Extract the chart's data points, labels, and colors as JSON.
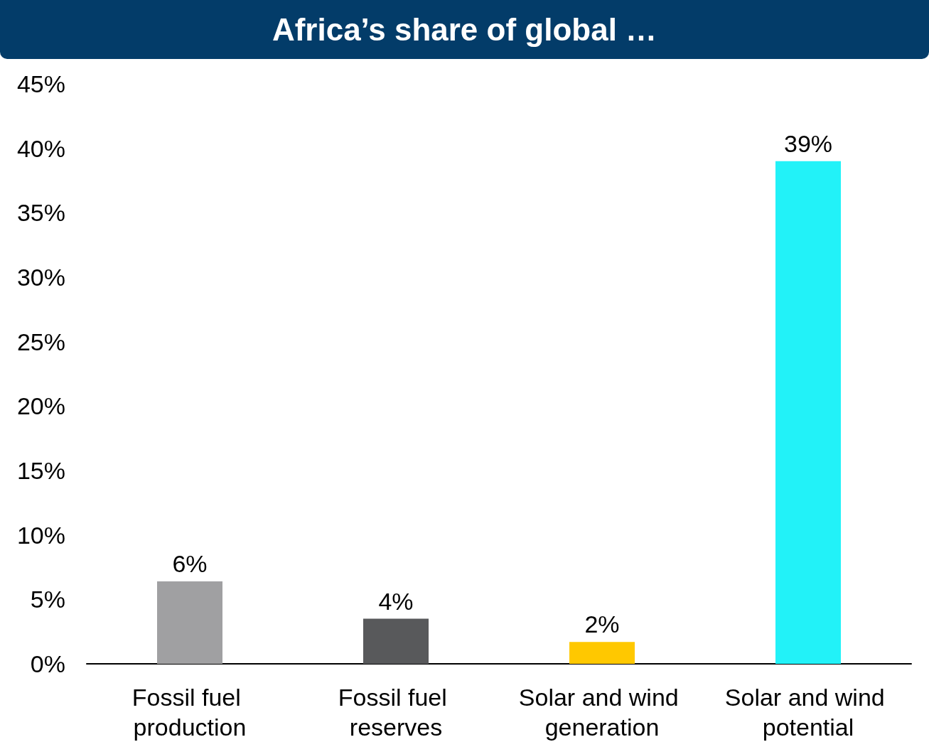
{
  "chart_data": {
    "type": "bar",
    "title": "Africa’s share of global …",
    "categories": [
      "Fossil fuel production",
      "Fossil fuel reserves",
      "Solar and wind generation",
      "Solar and wind potential"
    ],
    "values": [
      6.4,
      3.5,
      1.7,
      39
    ],
    "colors": [
      "#a0a0a2",
      "#58595b",
      "#ffc800",
      "#22f2f8"
    ],
    "value_labels": [
      "6%",
      "4%",
      "2%",
      "39%"
    ],
    "ylim": [
      0,
      45
    ],
    "yticks": [
      {
        "value": 0,
        "label": "0%"
      },
      {
        "value": 5,
        "label": "5%"
      },
      {
        "value": 10,
        "label": "10%"
      },
      {
        "value": 15,
        "label": "15%"
      },
      {
        "value": 20,
        "label": "20%"
      },
      {
        "value": 25,
        "label": "25%"
      },
      {
        "value": 30,
        "label": "30%"
      },
      {
        "value": 35,
        "label": "35%"
      },
      {
        "value": 40,
        "label": "40%"
      },
      {
        "value": 45,
        "label": "45%"
      }
    ],
    "grid": false
  }
}
